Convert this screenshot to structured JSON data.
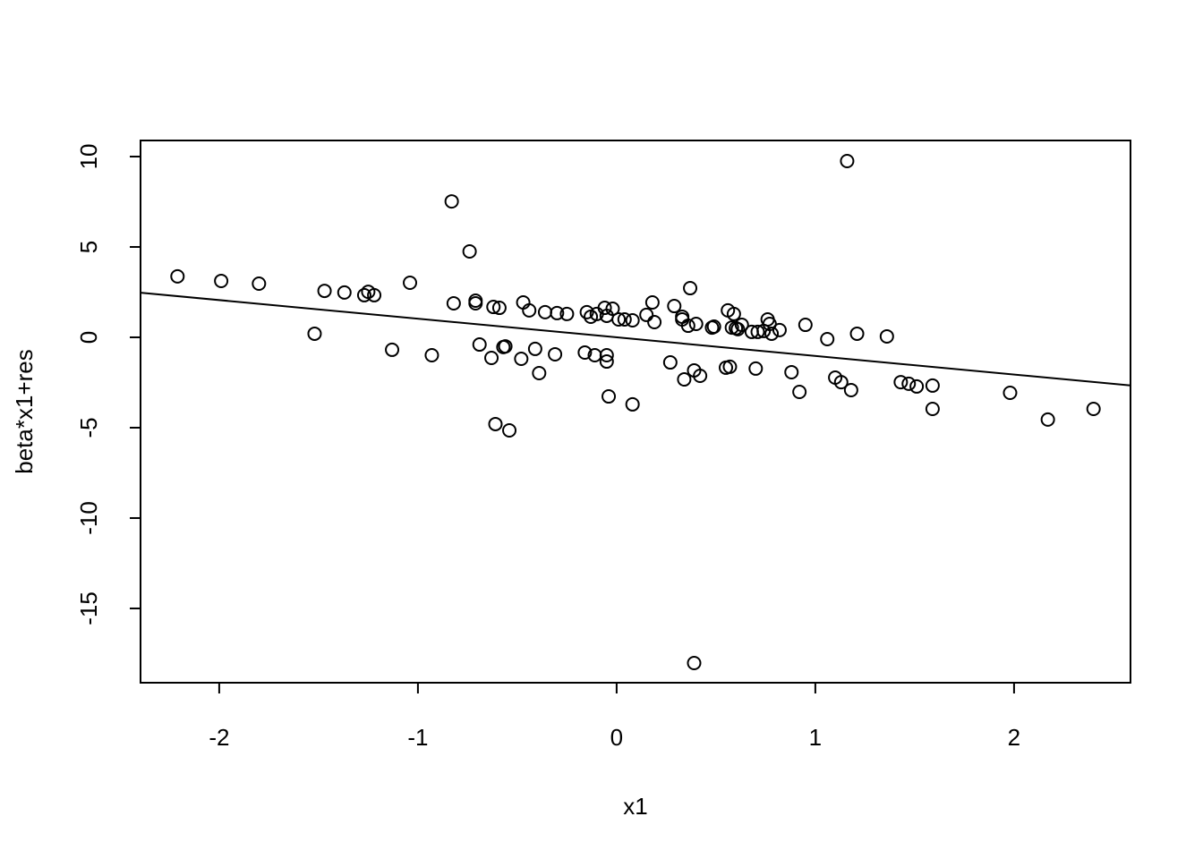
{
  "chart_data": {
    "type": "scatter",
    "x_label": "x1",
    "y_label": "beta*x1+res",
    "xlim": [
      -2.396,
      2.586
    ],
    "ylim": [
      -19.11,
      10.89
    ],
    "xticks": [
      -2,
      -1,
      0,
      1,
      2
    ],
    "yticks": [
      -15,
      -10,
      -5,
      0,
      5,
      10
    ],
    "abline": {
      "intercept": 0,
      "slope": -1.03
    },
    "color": "#000000",
    "series": [
      {
        "name": "points",
        "x": [
          -2.21,
          -1.99,
          -1.8,
          -1.52,
          -1.47,
          -1.37,
          -1.27,
          -1.25,
          -1.22,
          -1.13,
          -1.04,
          -0.93,
          -0.83,
          -0.82,
          -0.74,
          -0.71,
          -0.71,
          -0.69,
          -0.63,
          -0.62,
          -0.61,
          -0.59,
          -0.57,
          -0.56,
          -0.54,
          -0.48,
          -0.47,
          -0.44,
          -0.41,
          -0.39,
          -0.36,
          -0.31,
          -0.3,
          -0.25,
          -0.16,
          -0.15,
          -0.13,
          -0.11,
          -0.1,
          -0.06,
          -0.05,
          -0.05,
          -0.05,
          -0.04,
          -0.02,
          0.01,
          0.04,
          0.08,
          0.08,
          0.15,
          0.18,
          0.19,
          0.27,
          0.29,
          0.33,
          0.33,
          0.34,
          0.36,
          0.37,
          0.39,
          0.39,
          0.4,
          0.42,
          0.48,
          0.49,
          0.55,
          0.56,
          0.57,
          0.58,
          0.59,
          0.6,
          0.61,
          0.63,
          0.68,
          0.7,
          0.71,
          0.74,
          0.76,
          0.77,
          0.78,
          0.82,
          0.88,
          0.92,
          0.95,
          1.06,
          1.1,
          1.13,
          1.16,
          1.18,
          1.21,
          1.36,
          1.43,
          1.47,
          1.51,
          1.59,
          1.59,
          1.98,
          2.17,
          2.4
        ],
        "values": [
          3.37,
          3.12,
          2.97,
          0.2,
          2.57,
          2.48,
          2.33,
          2.52,
          2.33,
          -0.69,
          3.02,
          -0.99,
          7.52,
          1.88,
          4.75,
          2.03,
          1.88,
          -0.4,
          -1.14,
          1.68,
          -4.8,
          1.63,
          -0.54,
          -0.5,
          -5.15,
          -1.19,
          1.93,
          1.49,
          -0.64,
          -1.98,
          1.39,
          -0.94,
          1.34,
          1.29,
          -0.84,
          1.39,
          1.14,
          -0.99,
          1.29,
          1.63,
          -0.99,
          1.19,
          -1.34,
          -3.27,
          1.58,
          0.99,
          0.99,
          -3.71,
          0.94,
          1.24,
          1.93,
          0.84,
          -1.39,
          1.73,
          1.14,
          0.99,
          -2.33,
          0.64,
          2.72,
          -18.02,
          -1.83,
          0.74,
          -2.13,
          0.54,
          0.59,
          -1.68,
          1.49,
          -1.63,
          0.54,
          1.29,
          0.5,
          0.45,
          0.69,
          0.3,
          -1.73,
          0.3,
          0.35,
          0.99,
          0.74,
          0.2,
          0.4,
          -1.93,
          -3.02,
          0.69,
          -0.1,
          -2.23,
          -2.48,
          9.75,
          -2.92,
          0.2,
          0.05,
          -2.48,
          -2.57,
          -2.72,
          -2.67,
          -3.96,
          -3.07,
          -4.55,
          -3.96
        ]
      }
    ]
  }
}
